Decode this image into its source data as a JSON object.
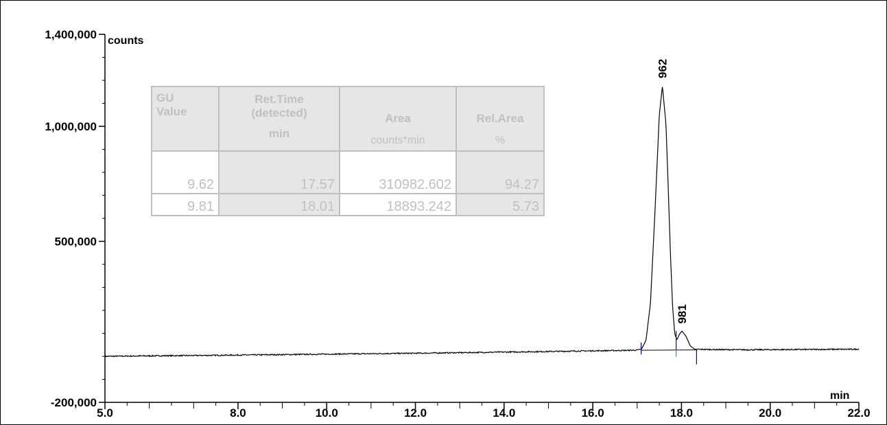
{
  "chart_data": {
    "type": "line",
    "title": "",
    "xlabel": "min",
    "ylabel": "counts",
    "xlim": [
      5.0,
      22.0
    ],
    "ylim": [
      -200000,
      1400000
    ],
    "x_ticks": [
      5.0,
      8.0,
      10.0,
      12.0,
      14.0,
      16.0,
      18.0,
      20.0,
      22.0
    ],
    "x_tick_labels": [
      "5.0",
      "8.0",
      "10.0",
      "12.0",
      "14.0",
      "16.0",
      "18.0",
      "20.0",
      "22.0"
    ],
    "y_ticks": [
      -200000,
      500000,
      1000000,
      1400000
    ],
    "y_tick_labels": [
      "-200,000",
      "500,000",
      "1,000,000",
      "1,400,000"
    ],
    "baseline": {
      "start": [
        5.0,
        0
      ],
      "end": [
        22.0,
        30000
      ]
    },
    "peaks": [
      {
        "label": "962",
        "time": 17.57,
        "height": 1155000,
        "start": 17.09,
        "end": 17.88
      },
      {
        "label": "981",
        "time": 18.01,
        "height": 88000,
        "start": 17.88,
        "end": 18.34
      }
    ],
    "series": [
      {
        "x": [
          5.0,
          6.0,
          7.0,
          8.0,
          9.0,
          10.0,
          11.0,
          12.0,
          13.0,
          14.0,
          15.0,
          16.0,
          16.8,
          17.0,
          17.1,
          17.2,
          17.3,
          17.4,
          17.5,
          17.57,
          17.65,
          17.7,
          17.75,
          17.8,
          17.85,
          17.9,
          17.95,
          18.01,
          18.1,
          18.2,
          18.3,
          18.5,
          19.0,
          19.5,
          20.0,
          21.0,
          22.0
        ],
        "y": [
          0,
          2000,
          3500,
          5500,
          7500,
          9500,
          11500,
          13500,
          16000,
          18500,
          21000,
          24000,
          26000,
          27000,
          32000,
          70000,
          230000,
          620000,
          1050000,
          1175000,
          1010000,
          740000,
          450000,
          215000,
          95000,
          72000,
          95000,
          110000,
          88000,
          45000,
          31000,
          30000,
          29000,
          28500,
          29000,
          30000,
          31000
        ]
      }
    ]
  },
  "table": {
    "headers": [
      {
        "top": "GU",
        "bottom": "Value",
        "unit": ""
      },
      {
        "top": "Ret.Time",
        "bottom": "(detected)",
        "unit": "min"
      },
      {
        "top": "",
        "bottom": "Area",
        "unit": "counts*min"
      },
      {
        "top": "",
        "bottom": "Rel.Area",
        "unit": "%"
      }
    ],
    "rows": [
      {
        "gu": "9.62",
        "rt": "17.57",
        "area": "310982.602",
        "rel": "94.27"
      },
      {
        "gu": "9.81",
        "rt": "18.01",
        "area": "18893.242",
        "rel": "5.73"
      }
    ]
  },
  "colors": {
    "trace": "#000000",
    "marker": "#0000cc",
    "table_text": "#c0c0c0",
    "table_shade": "#e6e6e6"
  }
}
